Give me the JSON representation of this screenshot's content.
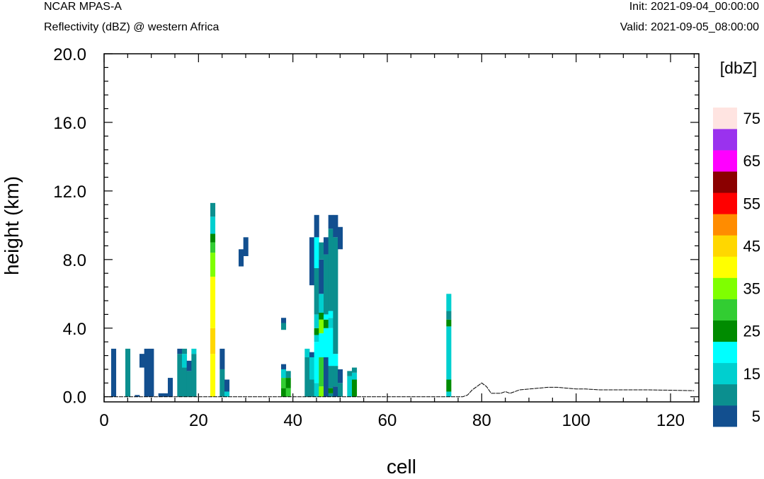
{
  "header": {
    "model": "NCAR MPAS-A",
    "field": "Reflectivity (dBZ) @ western Africa",
    "init": "Init: 2021-09-04_00:00:00",
    "valid": "Valid: 2021-09-05_08:00:00"
  },
  "chart_data": {
    "type": "heatmap",
    "title": "Reflectivity (dBZ) @ western Africa",
    "xlabel": "cell",
    "ylabel": "height (km)",
    "xlim": [
      0,
      126
    ],
    "ylim": [
      -0.3,
      20.0
    ],
    "x_ticks": [
      0,
      20,
      40,
      60,
      80,
      100,
      120
    ],
    "x_tick_labels": [
      "0",
      "20",
      "40",
      "60",
      "80",
      "100",
      "120"
    ],
    "y_ticks": [
      0,
      4,
      8,
      12,
      16,
      20
    ],
    "y_tick_labels": [
      "0.0",
      "4.0",
      "8.0",
      "12.0",
      "16.0",
      "20.0"
    ],
    "grid": false,
    "colorbar": {
      "title": "[dbZ]",
      "levels": [
        5,
        10,
        15,
        20,
        25,
        30,
        35,
        40,
        45,
        50,
        55,
        60,
        65,
        70,
        75
      ],
      "colors": [
        "#124f8f",
        "#0b8f8f",
        "#00cfcf",
        "#00ffff",
        "#008b00",
        "#32cd32",
        "#7fff00",
        "#ffff00",
        "#ffd700",
        "#ff8c00",
        "#ff0000",
        "#8b0000",
        "#ff00ff",
        "#9a32ee",
        "#ffe4e1"
      ],
      "labels": [
        "5",
        "15",
        "25",
        "35",
        "45",
        "55",
        "65",
        "75"
      ]
    },
    "cells": [
      [
        2,
        0,
        2.8,
        5
      ],
      [
        5,
        0,
        2.8,
        10
      ],
      [
        7,
        0,
        0.1,
        5
      ],
      [
        8,
        1.7,
        2.5,
        5
      ],
      [
        9,
        0,
        2.8,
        5
      ],
      [
        10,
        0,
        2.8,
        5
      ],
      [
        12,
        0,
        0.2,
        5
      ],
      [
        13,
        0,
        0.2,
        5
      ],
      [
        14,
        0,
        1.1,
        5
      ],
      [
        16,
        0,
        2.5,
        10
      ],
      [
        16,
        2.5,
        2.8,
        5
      ],
      [
        17,
        0,
        1.7,
        10
      ],
      [
        17,
        1.7,
        2.5,
        15
      ],
      [
        17,
        2.5,
        2.8,
        10
      ],
      [
        18,
        0,
        1.5,
        10
      ],
      [
        18,
        1.5,
        2.1,
        5
      ],
      [
        19,
        0,
        2.5,
        10
      ],
      [
        19,
        2.5,
        2.8,
        15
      ],
      [
        23,
        0,
        2.5,
        40
      ],
      [
        23,
        2.5,
        4.0,
        45
      ],
      [
        23,
        4.0,
        7.0,
        40
      ],
      [
        23,
        7.0,
        8.4,
        35
      ],
      [
        23,
        8.4,
        9.0,
        30
      ],
      [
        23,
        9.0,
        9.5,
        25
      ],
      [
        23,
        9.5,
        10.5,
        15
      ],
      [
        23,
        10.5,
        11.3,
        10
      ],
      [
        25,
        0,
        1.6,
        10
      ],
      [
        25,
        1.6,
        2.8,
        5
      ],
      [
        26,
        0,
        0.3,
        15
      ],
      [
        26,
        0.3,
        1.0,
        5
      ],
      [
        29,
        7.6,
        8.6,
        5
      ],
      [
        30,
        8.2,
        9.3,
        5
      ],
      [
        38,
        0,
        0.5,
        25
      ],
      [
        38,
        0.5,
        1.1,
        30
      ],
      [
        38,
        1.1,
        1.6,
        15
      ],
      [
        38,
        1.6,
        1.9,
        5
      ],
      [
        38,
        3.9,
        4.3,
        10
      ],
      [
        38,
        4.3,
        4.6,
        5
      ],
      [
        39,
        0,
        0.5,
        30
      ],
      [
        39,
        0.5,
        1.1,
        25
      ],
      [
        39,
        1.1,
        1.5,
        10
      ],
      [
        43,
        0,
        2.3,
        10
      ],
      [
        43,
        2.3,
        2.8,
        15
      ],
      [
        44,
        0,
        1.0,
        10
      ],
      [
        44,
        1.0,
        2.3,
        15
      ],
      [
        44,
        2.3,
        2.6,
        5
      ],
      [
        44,
        6.5,
        9.3,
        5
      ],
      [
        45,
        0,
        0.8,
        15
      ],
      [
        45,
        0.8,
        3.2,
        20
      ],
      [
        45,
        3.2,
        3.6,
        15
      ],
      [
        45,
        3.6,
        4.0,
        25
      ],
      [
        45,
        4.0,
        4.8,
        15
      ],
      [
        45,
        4.8,
        7.5,
        10
      ],
      [
        45,
        7.5,
        9.3,
        20
      ],
      [
        45,
        9.3,
        10.6,
        5
      ],
      [
        46,
        0,
        0.6,
        35
      ],
      [
        46,
        0.6,
        2.3,
        30
      ],
      [
        46,
        2.3,
        3.7,
        20
      ],
      [
        46,
        3.7,
        4.5,
        35
      ],
      [
        46,
        4.5,
        4.9,
        25
      ],
      [
        46,
        4.9,
        6.0,
        15
      ],
      [
        46,
        6.0,
        8.0,
        5
      ],
      [
        46,
        8.0,
        9.0,
        10
      ],
      [
        47,
        0,
        2.3,
        5
      ],
      [
        47,
        2.3,
        4.0,
        20
      ],
      [
        47,
        4.0,
        4.5,
        25
      ],
      [
        47,
        4.5,
        4.8,
        20
      ],
      [
        47,
        4.8,
        8.3,
        10
      ],
      [
        47,
        8.3,
        9.3,
        5
      ],
      [
        48,
        0,
        0.2,
        10
      ],
      [
        48,
        0.2,
        0.5,
        25
      ],
      [
        48,
        0.5,
        1.8,
        10
      ],
      [
        48,
        1.8,
        4.0,
        20
      ],
      [
        48,
        4.0,
        4.6,
        15
      ],
      [
        48,
        4.6,
        5.0,
        20
      ],
      [
        48,
        5.0,
        9.8,
        10
      ],
      [
        48,
        9.8,
        10.6,
        5
      ],
      [
        49,
        0,
        0.6,
        5
      ],
      [
        49,
        0.6,
        1.8,
        10
      ],
      [
        49,
        1.8,
        2.5,
        20
      ],
      [
        49,
        2.5,
        9.3,
        10
      ],
      [
        49,
        9.3,
        10.6,
        5
      ],
      [
        50,
        0,
        0.8,
        10
      ],
      [
        50,
        0.8,
        1.6,
        5
      ],
      [
        50,
        8.6,
        9.9,
        5
      ],
      [
        52,
        0,
        1.2,
        15
      ],
      [
        52,
        1.2,
        1.5,
        10
      ],
      [
        53,
        0,
        1.0,
        25
      ],
      [
        53,
        1.0,
        1.4,
        15
      ],
      [
        53,
        1.4,
        1.7,
        10
      ],
      [
        73,
        0,
        0.3,
        15
      ],
      [
        73,
        0.3,
        1.0,
        25
      ],
      [
        73,
        1.0,
        4.1,
        15
      ],
      [
        73,
        4.1,
        4.5,
        25
      ],
      [
        73,
        4.5,
        5.0,
        10
      ],
      [
        73,
        5.0,
        6.0,
        15
      ]
    ],
    "terrain": [
      [
        0,
        0
      ],
      [
        76,
        0
      ],
      [
        77,
        0.1
      ],
      [
        78,
        0.4
      ],
      [
        79,
        0.6
      ],
      [
        80,
        0.8
      ],
      [
        81,
        0.6
      ],
      [
        82,
        0.2
      ],
      [
        83,
        0.2
      ],
      [
        84,
        0.2
      ],
      [
        85,
        0.3
      ],
      [
        86,
        0.2
      ],
      [
        87,
        0.3
      ],
      [
        88,
        0.4
      ],
      [
        90,
        0.45
      ],
      [
        92,
        0.5
      ],
      [
        94,
        0.55
      ],
      [
        96,
        0.55
      ],
      [
        98,
        0.5
      ],
      [
        100,
        0.45
      ],
      [
        102,
        0.45
      ],
      [
        105,
        0.4
      ],
      [
        110,
        0.4
      ],
      [
        115,
        0.4
      ],
      [
        120,
        0.38
      ],
      [
        125,
        0.35
      ]
    ]
  }
}
